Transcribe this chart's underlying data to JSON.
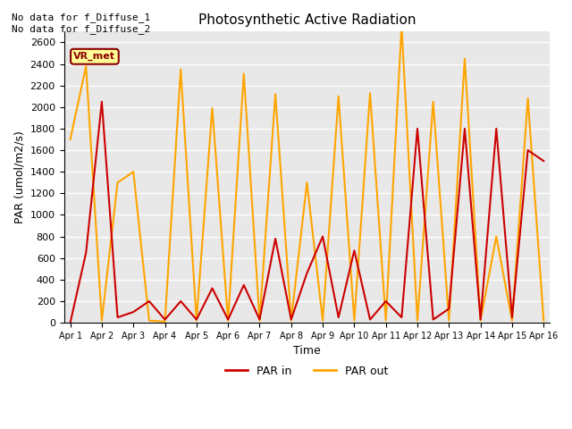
{
  "title": "Photosynthetic Active Radiation",
  "xlabel": "Time",
  "ylabel": "PAR (umol/m2/s)",
  "ylim": [
    0,
    2700
  ],
  "yticks": [
    0,
    200,
    400,
    600,
    800,
    1000,
    1200,
    1400,
    1600,
    1800,
    2000,
    2200,
    2400,
    2600
  ],
  "x_labels": [
    "Apr 1",
    "Apr 2",
    "Apr 3",
    "Apr 4",
    "Apr 5",
    "Apr 6",
    "Apr 7",
    "Apr 8",
    "Apr 9",
    "Apr 10",
    "Apr 11",
    "Apr 12",
    "Apr 13",
    "Apr 14",
    "Apr 15",
    "Apr 16"
  ],
  "annotation_text": "No data for f_Diffuse_1\nNo data for f_Diffuse_2",
  "legend_label": "VR_met",
  "color_par_in": "#cc0000",
  "color_par_out": "#ffa500",
  "bg_color": "#e8e8e8",
  "grid_color": "#ffffff",
  "par_in_x": [
    0,
    0.5,
    1.0,
    1.5,
    2.0,
    2.5,
    3.0,
    3.5,
    4.0,
    4.5,
    5.0,
    5.5,
    6.0,
    6.5,
    7.0,
    7.5,
    8.0,
    8.5,
    9.0,
    9.5,
    10.0,
    10.5,
    11.0,
    11.5,
    12.0,
    12.5,
    13.0,
    13.5,
    14.0,
    14.5,
    15.0
  ],
  "par_in_y": [
    0,
    650,
    2050,
    50,
    100,
    200,
    30,
    200,
    30,
    320,
    30,
    350,
    30,
    780,
    30,
    460,
    800,
    50,
    670,
    30,
    200,
    50,
    1800,
    30,
    130,
    1800,
    30,
    1800,
    50,
    1600,
    1500
  ],
  "par_out_x": [
    0,
    0.5,
    1.0,
    1.5,
    2.0,
    2.5,
    3.0,
    3.5,
    4.0,
    4.5,
    5.0,
    5.5,
    6.0,
    6.5,
    7.0,
    7.5,
    8.0,
    8.5,
    9.0,
    9.5,
    10.0,
    10.5,
    11.0,
    11.5,
    12.0,
    12.5,
    13.0,
    13.5,
    14.0,
    14.5,
    15.0
  ],
  "par_out_y": [
    1700,
    2380,
    20,
    1300,
    1400,
    20,
    10,
    2350,
    20,
    1990,
    20,
    2310,
    20,
    2120,
    20,
    1300,
    20,
    2100,
    20,
    2130,
    20,
    2750,
    20,
    2050,
    20,
    2450,
    20,
    800,
    20,
    2080,
    20
  ]
}
